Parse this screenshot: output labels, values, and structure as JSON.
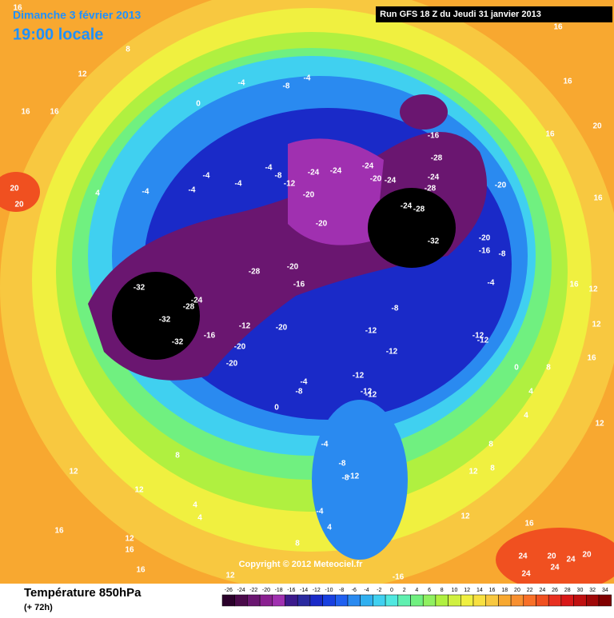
{
  "header": {
    "date": "Dimanche 3 février 2013",
    "time": "19:00 locale",
    "run": "Run GFS 18 Z du Jeudi 31 janvier 2013"
  },
  "footer": {
    "title": "Température 850hPa",
    "subtitle": "(+ 72h)",
    "copyright": "Copyright © 2012 Meteociel.fr"
  },
  "legend": {
    "values": [
      -26,
      -24,
      -22,
      -20,
      -18,
      -16,
      -14,
      -12,
      -10,
      -8,
      -6,
      -4,
      -2,
      0,
      2,
      4,
      6,
      8,
      10,
      12,
      14,
      16,
      18,
      20,
      22,
      24,
      26,
      28,
      30,
      32,
      34
    ],
    "colors": [
      "#2a002a",
      "#4a0a4a",
      "#6a1670",
      "#8a2090",
      "#a030b0",
      "#3c1a8c",
      "#2a2aa0",
      "#1a2ac8",
      "#1840e0",
      "#2060f0",
      "#2a8af0",
      "#30b0f0",
      "#40d0f0",
      "#50e8e0",
      "#60f0b0",
      "#70f080",
      "#90f060",
      "#b0f040",
      "#d0f040",
      "#f0f040",
      "#f8e040",
      "#f8c840",
      "#f8a830",
      "#f89030",
      "#f87028",
      "#f05020",
      "#e83020",
      "#d81818",
      "#c01010",
      "#a00808",
      "#800000"
    ]
  },
  "map": {
    "labels": [
      16,
      8,
      12,
      16,
      16,
      0,
      -4,
      -8,
      -4,
      16,
      16,
      16,
      20,
      20,
      20,
      16,
      4,
      -4,
      -4,
      -4,
      -4,
      -4,
      -8,
      -12,
      -24,
      -24,
      -24,
      -20,
      -24,
      -20,
      -20,
      -16,
      -28,
      -24,
      -28,
      -24,
      -28,
      -32,
      -20,
      -20,
      -16,
      -8,
      -4,
      -32,
      -24,
      -28,
      -28,
      -20,
      -16,
      -32,
      -32,
      -16,
      -12,
      -20,
      -20,
      -20,
      -8,
      -12,
      -12,
      -12,
      -12,
      -12,
      -4,
      -8,
      0,
      -12,
      -12,
      0,
      8,
      4,
      4,
      -4,
      -8,
      -12,
      -8,
      -4,
      4,
      8,
      12,
      -16,
      8,
      8,
      12,
      12,
      16,
      24,
      20,
      24,
      20,
      24,
      24,
      12,
      12,
      4,
      4,
      16,
      12,
      16,
      16,
      12,
      16,
      12,
      16,
      12,
      8
    ]
  }
}
